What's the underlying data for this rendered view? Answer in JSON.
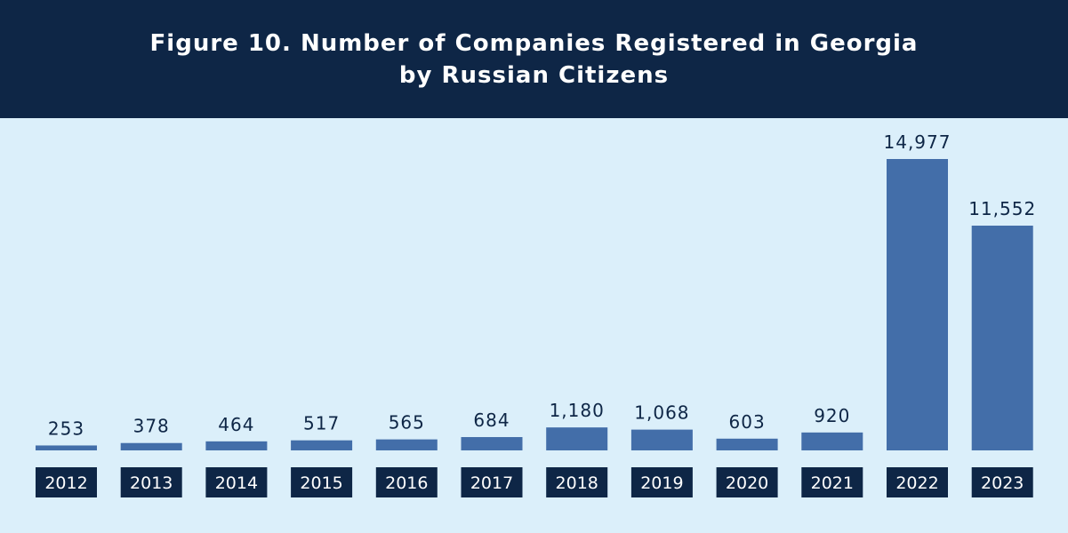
{
  "header": {
    "title_line1": "Figure 10. Number of Companies Registered in Georgia",
    "title_line2": "by Russian Citizens"
  },
  "colors": {
    "header_background": "#0e2646",
    "plot_background": "#dbeffa",
    "bar": "#436ea9",
    "year_label_background": "#0e2646",
    "year_label_text": "#ffffff",
    "value_label_text": "#0e2646"
  },
  "chart_data": {
    "type": "bar",
    "title": "Figure 10. Number of Companies Registered in Georgia by Russian Citizens",
    "categories": [
      "2012",
      "2013",
      "2014",
      "2015",
      "2016",
      "2017",
      "2018",
      "2019",
      "2020",
      "2021",
      "2022",
      "2023"
    ],
    "values": [
      253,
      378,
      464,
      517,
      565,
      684,
      1180,
      1068,
      603,
      920,
      14977,
      11552
    ],
    "value_labels": [
      "253",
      "378",
      "464",
      "517",
      "565",
      "684",
      "1,180",
      "1,068",
      "603",
      "920",
      "14,977",
      "11,552"
    ],
    "xlabel": "",
    "ylabel": "",
    "grid": false,
    "legend": "none"
  }
}
